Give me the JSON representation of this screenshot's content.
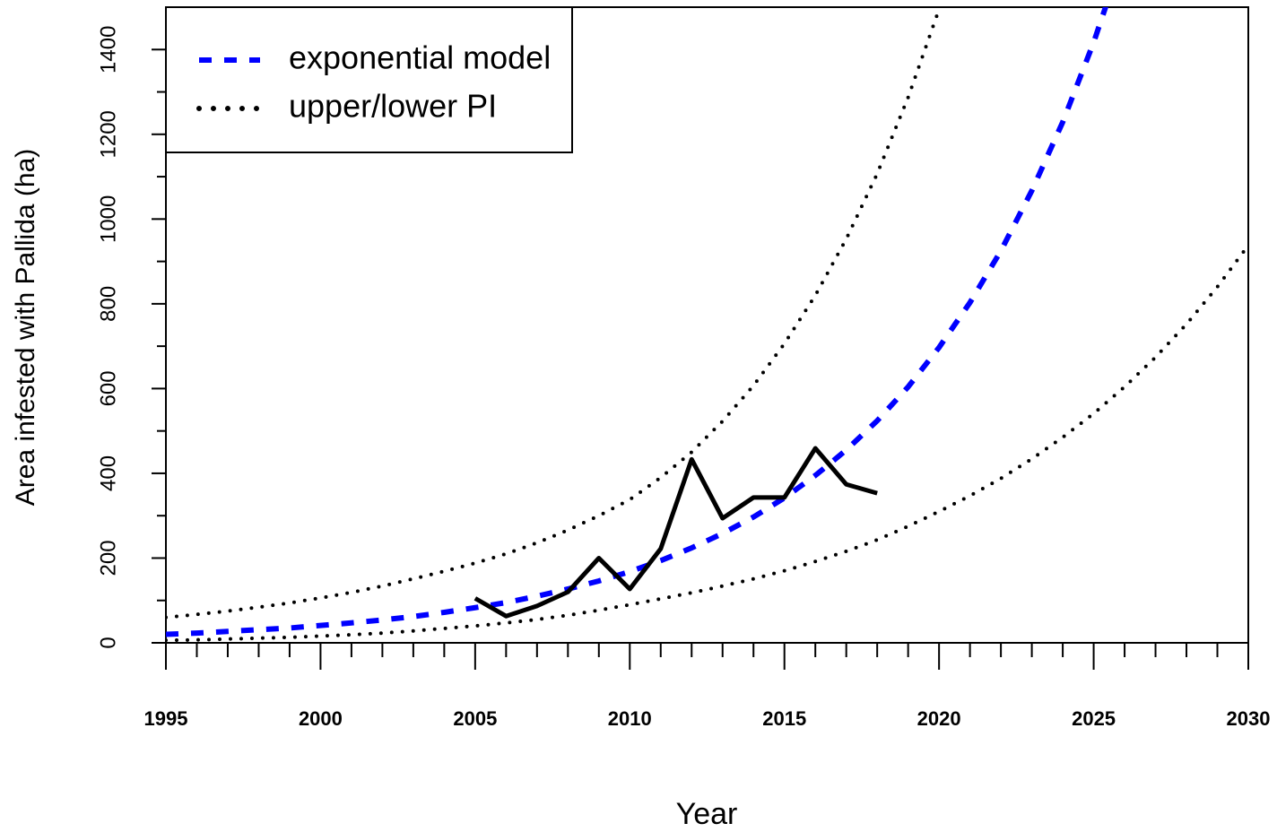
{
  "chart_data": {
    "type": "line",
    "xlabel": "Year",
    "ylabel": "Area infested with Pallida (ha)",
    "xlim": [
      1995,
      2030
    ],
    "xticks": [
      1995,
      2000,
      2005,
      2010,
      2015,
      2020,
      2025,
      2030
    ],
    "xminorticks": [
      1996,
      1997,
      1998,
      1999,
      2001,
      2002,
      2003,
      2004,
      2006,
      2007,
      2008,
      2009,
      2011,
      2012,
      2013,
      2014,
      2016,
      2017,
      2018,
      2019,
      2021,
      2022,
      2023,
      2024,
      2026,
      2027,
      2028,
      2029
    ],
    "ylim": [
      0,
      1500
    ],
    "yticks": [
      0,
      200,
      400,
      600,
      800,
      1000,
      1200,
      1400
    ],
    "yminorticks": [
      100,
      300,
      500,
      700,
      900,
      1100,
      1300
    ],
    "legend": "upper left",
    "series": [
      {
        "name": "exponential model",
        "color": "#0000ff",
        "style": "dashed",
        "x": [
          1995,
          1996,
          1997,
          1998,
          1999,
          2000,
          2001,
          2002,
          2003,
          2004,
          2005,
          2006,
          2007,
          2008,
          2009,
          2010,
          2011,
          2012,
          2013,
          2014,
          2015,
          2016,
          2017,
          2018,
          2019,
          2020,
          2021,
          2022,
          2023,
          2024,
          2025,
          2026
        ],
        "values": [
          20,
          23,
          27,
          31,
          35,
          41,
          47,
          54,
          62,
          72,
          83,
          95,
          110,
          127,
          146,
          168,
          194,
          224,
          258,
          297,
          342,
          395,
          455,
          524,
          604,
          697,
          803,
          925,
          1067,
          1229,
          1417,
          1633
        ]
      },
      {
        "name": "upper/lower PI",
        "color": "#000000",
        "style": "dotted",
        "x": [
          1995,
          1996,
          1997,
          1998,
          1999,
          2000,
          2001,
          2002,
          2003,
          2004,
          2005,
          2006,
          2007,
          2008,
          2009,
          2010,
          2011,
          2012,
          2013,
          2014,
          2015,
          2016,
          2017,
          2018,
          2019,
          2020,
          2021
        ],
        "values": [
          60,
          67,
          75,
          84,
          94,
          106,
          119,
          134,
          151,
          169,
          188,
          210,
          236,
          266,
          300,
          338,
          390,
          450,
          523,
          607,
          706,
          820,
          953,
          1107,
          1287,
          1495,
          1737
        ]
      },
      {
        "color": "#000000",
        "style": "dotted",
        "x": [
          1995,
          1996,
          1997,
          1998,
          1999,
          2000,
          2001,
          2002,
          2003,
          2004,
          2005,
          2006,
          2007,
          2008,
          2009,
          2010,
          2011,
          2012,
          2013,
          2014,
          2015,
          2016,
          2017,
          2018,
          2019,
          2020,
          2021,
          2022,
          2023,
          2024,
          2025,
          2026,
          2027,
          2028,
          2029,
          2030
        ],
        "values": [
          6,
          7,
          9,
          11,
          13,
          16,
          19,
          23,
          28,
          34,
          40,
          47,
          55,
          65,
          77,
          90,
          104,
          118,
          134,
          151,
          170,
          192,
          216,
          243,
          275,
          310,
          347,
          388,
          434,
          485,
          541,
          604,
          674,
          752,
          840,
          938
        ]
      },
      {
        "color": "#000000",
        "style": "solid",
        "x": [
          2005,
          2006,
          2007,
          2008,
          2009,
          2010,
          2011,
          2012,
          2013,
          2014,
          2015,
          2016,
          2017,
          2018
        ],
        "values": [
          105,
          63,
          87,
          120,
          200,
          127,
          222,
          433,
          294,
          343,
          343,
          459,
          374,
          353
        ]
      }
    ]
  }
}
